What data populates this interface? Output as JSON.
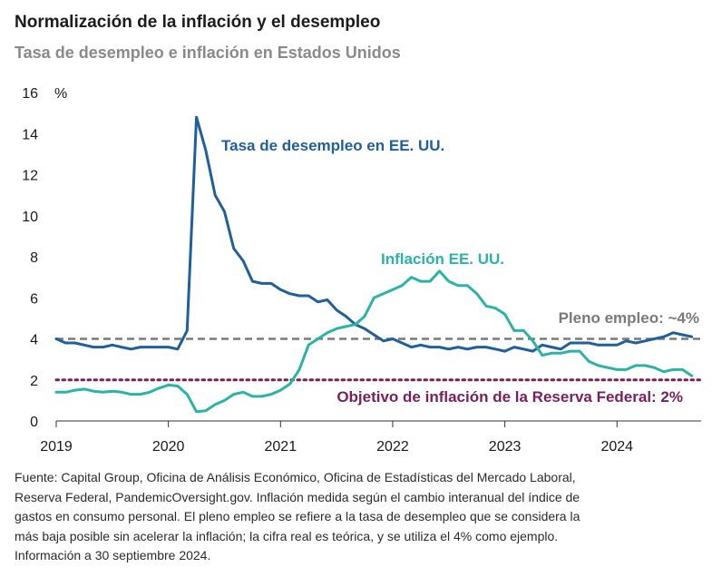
{
  "title": "Normalización de la inflación y el desempleo",
  "subtitle": "Tasa de desempleo e inflación en Estados Unidos",
  "footnote": [
    "Fuente: Capital Group, Oficina de Análisis Económico, Oficina de Estadísticas del Mercado Laboral,",
    "Reserva Federal, PandemicOversight.gov. Inflación medida según el cambio interanual del índice de",
    "gastos en consumo personal. El pleno empleo se refiere a la tasa de desempleo que se considera la",
    "más baja posible sin acelerar la inflación; la cifra real es teórica, y se utiliza el 4% como ejemplo.",
    "Información a 30 septiembre 2024."
  ],
  "chart_data": {
    "type": "line",
    "ylabel": "%",
    "ylim": [
      0,
      16
    ],
    "yticks": [
      0,
      2,
      4,
      6,
      8,
      10,
      12,
      14,
      16
    ],
    "xlim": [
      2019.0,
      2024.75
    ],
    "xticks": [
      2019,
      2020,
      2021,
      2022,
      2023,
      2024
    ],
    "grid": false,
    "series": [
      {
        "name": "Tasa de desempleo en EE. UU.",
        "color": "#1f5f9e",
        "x": [
          2019.0,
          2019.083,
          2019.167,
          2019.25,
          2019.333,
          2019.417,
          2019.5,
          2019.583,
          2019.667,
          2019.75,
          2019.833,
          2019.917,
          2020.0,
          2020.083,
          2020.167,
          2020.25,
          2020.333,
          2020.417,
          2020.5,
          2020.583,
          2020.667,
          2020.75,
          2020.833,
          2020.917,
          2021.0,
          2021.083,
          2021.167,
          2021.25,
          2021.333,
          2021.417,
          2021.5,
          2021.583,
          2021.667,
          2021.75,
          2021.833,
          2021.917,
          2022.0,
          2022.083,
          2022.167,
          2022.25,
          2022.333,
          2022.417,
          2022.5,
          2022.583,
          2022.667,
          2022.75,
          2022.833,
          2022.917,
          2023.0,
          2023.083,
          2023.167,
          2023.25,
          2023.333,
          2023.417,
          2023.5,
          2023.583,
          2023.667,
          2023.75,
          2023.833,
          2023.917,
          2024.0,
          2024.083,
          2024.167,
          2024.25,
          2024.333,
          2024.417,
          2024.5,
          2024.583,
          2024.667
        ],
        "values": [
          4.0,
          3.8,
          3.8,
          3.7,
          3.6,
          3.6,
          3.7,
          3.6,
          3.5,
          3.6,
          3.6,
          3.6,
          3.6,
          3.5,
          4.4,
          14.8,
          13.2,
          11.0,
          10.2,
          8.4,
          7.8,
          6.8,
          6.7,
          6.7,
          6.4,
          6.2,
          6.1,
          6.1,
          5.8,
          5.9,
          5.4,
          5.1,
          4.7,
          4.5,
          4.2,
          3.9,
          4.0,
          3.8,
          3.6,
          3.7,
          3.6,
          3.6,
          3.5,
          3.6,
          3.5,
          3.6,
          3.6,
          3.5,
          3.4,
          3.6,
          3.5,
          3.4,
          3.7,
          3.6,
          3.5,
          3.8,
          3.8,
          3.8,
          3.7,
          3.7,
          3.7,
          3.9,
          3.8,
          3.9,
          4.0,
          4.1,
          4.3,
          4.2,
          4.1
        ]
      },
      {
        "name": "Inflación EE. UU.",
        "color": "#2ab3a6",
        "x": [
          2019.0,
          2019.083,
          2019.167,
          2019.25,
          2019.333,
          2019.417,
          2019.5,
          2019.583,
          2019.667,
          2019.75,
          2019.833,
          2019.917,
          2020.0,
          2020.083,
          2020.167,
          2020.25,
          2020.333,
          2020.417,
          2020.5,
          2020.583,
          2020.667,
          2020.75,
          2020.833,
          2020.917,
          2021.0,
          2021.083,
          2021.167,
          2021.25,
          2021.333,
          2021.417,
          2021.5,
          2021.583,
          2021.667,
          2021.75,
          2021.833,
          2021.917,
          2022.0,
          2022.083,
          2022.167,
          2022.25,
          2022.333,
          2022.417,
          2022.5,
          2022.583,
          2022.667,
          2022.75,
          2022.833,
          2022.917,
          2023.0,
          2023.083,
          2023.167,
          2023.25,
          2023.333,
          2023.417,
          2023.5,
          2023.583,
          2023.667,
          2023.75,
          2023.833,
          2023.917,
          2024.0,
          2024.083,
          2024.167,
          2024.25,
          2024.333,
          2024.417,
          2024.5,
          2024.583,
          2024.667
        ],
        "values": [
          1.4,
          1.4,
          1.5,
          1.55,
          1.45,
          1.4,
          1.45,
          1.4,
          1.3,
          1.3,
          1.4,
          1.6,
          1.75,
          1.7,
          1.3,
          0.45,
          0.5,
          0.8,
          1.0,
          1.3,
          1.4,
          1.2,
          1.2,
          1.3,
          1.5,
          1.8,
          2.5,
          3.7,
          4.0,
          4.3,
          4.5,
          4.6,
          4.7,
          5.1,
          6.0,
          6.2,
          6.4,
          6.6,
          7.0,
          6.8,
          6.8,
          7.3,
          6.8,
          6.6,
          6.6,
          6.2,
          5.6,
          5.5,
          5.2,
          4.4,
          4.4,
          3.9,
          3.2,
          3.3,
          3.3,
          3.4,
          3.4,
          2.9,
          2.7,
          2.6,
          2.5,
          2.5,
          2.7,
          2.7,
          2.6,
          2.4,
          2.5,
          2.5,
          2.2
        ]
      }
    ],
    "reference_lines": [
      {
        "label": "Pleno empleo: ~4%",
        "value": 4,
        "color": "#7a7a7a"
      },
      {
        "label": "Objetivo de inflación de la Reserva Federal: 2%",
        "value": 2,
        "color": "#7a1f5e"
      }
    ]
  }
}
